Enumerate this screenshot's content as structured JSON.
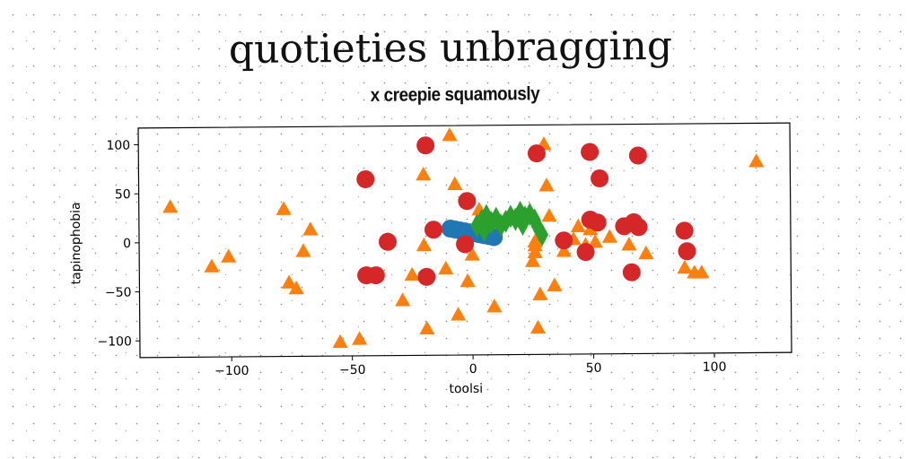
{
  "page": {
    "title": "quotieties unbragging"
  },
  "chart_data": {
    "type": "scatter",
    "title": "x creepie squamously",
    "xlabel": "toolsi",
    "ylabel": "tapinophobia",
    "xlim": [
      -138,
      132
    ],
    "ylim": [
      -117,
      117
    ],
    "xticks": [
      -100,
      -50,
      0,
      50,
      100
    ],
    "yticks": [
      -100,
      -50,
      0,
      50,
      100
    ],
    "xtick_labels": [
      "−100",
      "−50",
      "0",
      "50",
      "100"
    ],
    "ytick_labels": [
      "−100",
      "−50",
      "0",
      "50",
      "100"
    ],
    "grid": false,
    "series": [
      {
        "marker": "circle",
        "color": "#1f77b4",
        "points": [
          [
            -9,
            12
          ],
          [
            -7,
            11
          ],
          [
            -5,
            10
          ],
          [
            -3,
            9
          ],
          [
            -1,
            8
          ],
          [
            1,
            7
          ],
          [
            3,
            6
          ],
          [
            5,
            5
          ],
          [
            7,
            4
          ],
          [
            9,
            3
          ]
        ]
      },
      {
        "marker": "triangle",
        "color": "#ff7f0e",
        "points": [
          [
            -125,
            36
          ],
          [
            -108,
            -25
          ],
          [
            -101,
            -15
          ],
          [
            -78,
            33
          ],
          [
            -76,
            -42
          ],
          [
            -73,
            -48
          ],
          [
            -70,
            -10
          ],
          [
            -67,
            12
          ],
          [
            -55,
            -103
          ],
          [
            -47,
            -100
          ],
          [
            -35,
            1
          ],
          [
            -29,
            -61
          ],
          [
            -25,
            -35
          ],
          [
            -20,
            67
          ],
          [
            -20,
            -5
          ],
          [
            -19,
            -90
          ],
          [
            -11,
            -29
          ],
          [
            -9,
            107
          ],
          [
            -7,
            57
          ],
          [
            -6,
            -76
          ],
          [
            -2,
            -42
          ],
          [
            0,
            -15
          ],
          [
            3,
            31
          ],
          [
            9,
            -68
          ],
          [
            25,
            -22
          ],
          [
            26,
            -13
          ],
          [
            26,
            -6
          ],
          [
            26,
            -2
          ],
          [
            27,
            -90
          ],
          [
            28,
            -56
          ],
          [
            30,
            97
          ],
          [
            31,
            55
          ],
          [
            32,
            24
          ],
          [
            34,
            -47
          ],
          [
            38,
            -12
          ],
          [
            42,
            0
          ],
          [
            44,
            13
          ],
          [
            47,
            -6
          ],
          [
            49,
            10
          ],
          [
            51,
            -3
          ],
          [
            57,
            2
          ],
          [
            65,
            -6
          ],
          [
            72,
            -15
          ],
          [
            88,
            -30
          ],
          [
            92,
            -35
          ],
          [
            95,
            -35
          ],
          [
            118,
            78
          ]
        ]
      },
      {
        "marker": "circle",
        "color": "#d62728",
        "points": [
          [
            -44,
            63
          ],
          [
            -44,
            -35
          ],
          [
            -40,
            -35
          ],
          [
            -35,
            -1
          ],
          [
            -19,
            97
          ],
          [
            -19,
            -37
          ],
          [
            -16,
            11
          ],
          [
            -2,
            40
          ],
          [
            -3,
            -4
          ],
          [
            27,
            88
          ],
          [
            38,
            -1
          ],
          [
            47,
            -13
          ],
          [
            49,
            20
          ],
          [
            52,
            17
          ],
          [
            49,
            89
          ],
          [
            53,
            62
          ],
          [
            63,
            13
          ],
          [
            66,
            -34
          ],
          [
            67,
            17
          ],
          [
            69,
            12
          ],
          [
            69,
            85
          ],
          [
            88,
            8
          ],
          [
            89,
            -13
          ]
        ]
      },
      {
        "marker": "thin_diamond",
        "color": "#2ca02c",
        "points": [
          [
            2,
            15
          ],
          [
            4,
            20
          ],
          [
            6,
            25
          ],
          [
            8,
            18
          ],
          [
            10,
            22
          ],
          [
            14,
            19
          ],
          [
            16,
            24
          ],
          [
            18,
            21
          ],
          [
            20,
            28
          ],
          [
            22,
            23
          ],
          [
            24,
            26
          ],
          [
            26,
            20
          ],
          [
            27,
            14
          ],
          [
            28,
            9
          ],
          [
            29,
            5
          ],
          [
            5,
            10
          ],
          [
            12,
            15
          ],
          [
            21,
            16
          ]
        ]
      }
    ]
  }
}
